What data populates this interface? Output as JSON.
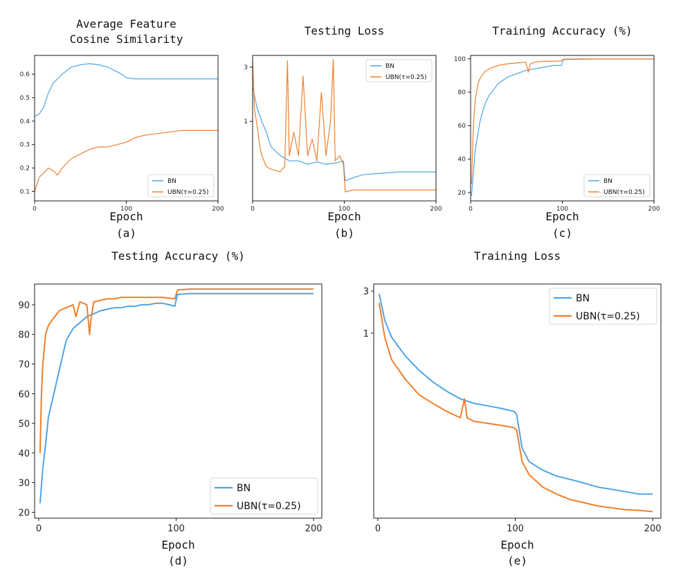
{
  "colors": {
    "bn": "#4ea4e3",
    "ubn": "#f07f2a"
  },
  "chart_data": [
    {
      "panel": "(a)",
      "type": "line",
      "title": "Average Feature\nCosine Similarity",
      "xlabel": "Epoch",
      "xlim": [
        0,
        200
      ],
      "ylim": [
        0.06,
        0.68
      ],
      "xticks": [
        0,
        100,
        200
      ],
      "yticks": [
        0.1,
        0.2,
        0.3,
        0.4,
        0.5,
        0.6
      ],
      "ytick_labels": [
        "0.1",
        "0.2",
        "0.3",
        "0.4",
        "0.5",
        "0.6"
      ],
      "legend": [
        "BN",
        "UBN(τ=0.25)"
      ],
      "legend_loc": "lower-right",
      "series": [
        {
          "name": "BN",
          "x": [
            0,
            5,
            10,
            15,
            20,
            30,
            40,
            50,
            60,
            70,
            80,
            90,
            95,
            100,
            110,
            120,
            140,
            160,
            180,
            200
          ],
          "y": [
            0.42,
            0.43,
            0.46,
            0.52,
            0.56,
            0.6,
            0.63,
            0.64,
            0.645,
            0.64,
            0.63,
            0.61,
            0.6,
            0.585,
            0.58,
            0.58,
            0.58,
            0.58,
            0.58,
            0.58
          ]
        },
        {
          "name": "UBN(τ=0.25)",
          "x": [
            0,
            5,
            10,
            15,
            20,
            25,
            30,
            40,
            50,
            60,
            70,
            80,
            90,
            100,
            110,
            120,
            140,
            160,
            180,
            200
          ],
          "y": [
            0.1,
            0.16,
            0.18,
            0.2,
            0.19,
            0.17,
            0.2,
            0.24,
            0.26,
            0.28,
            0.29,
            0.29,
            0.3,
            0.31,
            0.33,
            0.34,
            0.35,
            0.36,
            0.36,
            0.36
          ]
        }
      ]
    },
    {
      "panel": "(b)",
      "type": "line",
      "title": "Testing Loss",
      "xlabel": "Epoch",
      "xlim": [
        0,
        200
      ],
      "ylim": [
        0.2,
        3.8
      ],
      "yscale": "log",
      "xticks": [
        0,
        100,
        200
      ],
      "yticks": [
        1,
        3
      ],
      "ytick_labels": [
        "1",
        "3"
      ],
      "legend": [
        "BN",
        "UBN(τ=0.25)"
      ],
      "legend_loc": "top-right",
      "series": [
        {
          "name": "BN",
          "x": [
            0,
            5,
            10,
            15,
            20,
            30,
            40,
            50,
            60,
            70,
            80,
            90,
            99,
            101,
            110,
            120,
            140,
            160,
            180,
            200
          ],
          "y": [
            2.0,
            1.3,
            1.0,
            0.8,
            0.6,
            0.5,
            0.45,
            0.45,
            0.42,
            0.44,
            0.42,
            0.43,
            0.45,
            0.3,
            0.32,
            0.34,
            0.35,
            0.36,
            0.36,
            0.36
          ]
        },
        {
          "name": "UBN(τ=0.25)",
          "x": [
            0,
            2,
            5,
            8,
            10,
            15,
            20,
            30,
            35,
            38,
            40,
            45,
            50,
            55,
            60,
            65,
            70,
            75,
            80,
            85,
            88,
            90,
            95,
            99,
            101,
            110,
            120,
            140,
            160,
            180,
            200
          ],
          "y": [
            3.4,
            1.3,
            0.9,
            0.6,
            0.5,
            0.4,
            0.38,
            0.36,
            0.4,
            3.4,
            0.5,
            0.8,
            0.5,
            2.5,
            0.5,
            0.7,
            0.45,
            1.8,
            0.5,
            1.0,
            3.5,
            0.45,
            0.5,
            0.42,
            0.24,
            0.25,
            0.25,
            0.25,
            0.25,
            0.25,
            0.25
          ]
        }
      ]
    },
    {
      "panel": "(c)",
      "type": "line",
      "title": "Training Accuracy (%)",
      "xlabel": "Epoch",
      "xlim": [
        0,
        200
      ],
      "ylim": [
        15,
        102
      ],
      "xticks": [
        0,
        100,
        200
      ],
      "yticks": [
        20,
        40,
        60,
        80,
        100
      ],
      "ytick_labels": [
        "20",
        "40",
        "60",
        "80",
        "100"
      ],
      "legend": [
        "BN",
        "UBN(τ=0.25)"
      ],
      "legend_loc": "lower-right",
      "series": [
        {
          "name": "BN",
          "x": [
            1,
            5,
            10,
            15,
            20,
            30,
            40,
            50,
            60,
            70,
            80,
            90,
            99,
            101,
            110,
            120,
            140,
            160,
            180,
            200
          ],
          "y": [
            18,
            45,
            62,
            72,
            78,
            85,
            89,
            91,
            93,
            94,
            95,
            96,
            96,
            99.5,
            99.6,
            99.7,
            99.8,
            99.8,
            99.8,
            99.8
          ]
        },
        {
          "name": "UBN(τ=0.25)",
          "x": [
            1,
            3,
            5,
            8,
            10,
            15,
            20,
            30,
            40,
            50,
            60,
            63,
            65,
            70,
            80,
            90,
            99,
            101,
            110,
            120,
            140,
            160,
            180,
            200
          ],
          "y": [
            25,
            60,
            75,
            85,
            88,
            92,
            94,
            96,
            97,
            97.5,
            98,
            92,
            97,
            98,
            98.5,
            98.5,
            98.7,
            99.8,
            99.9,
            99.9,
            99.9,
            99.9,
            99.9,
            99.9
          ]
        }
      ]
    },
    {
      "panel": "(d)",
      "type": "line",
      "title": "Testing Accuracy (%)",
      "xlabel": "Epoch",
      "xlim": [
        -3,
        206
      ],
      "ylim": [
        18,
        97
      ],
      "xticks": [
        0,
        100,
        200
      ],
      "yticks": [
        20,
        30,
        40,
        50,
        60,
        70,
        80,
        90
      ],
      "ytick_labels": [
        "20",
        "30",
        "40",
        "50",
        "60",
        "70",
        "80",
        "90"
      ],
      "legend": [
        "BN",
        "UBN(τ=0.25)"
      ],
      "legend_loc": "lower-right",
      "series": [
        {
          "name": "BN",
          "x": [
            1,
            3,
            5,
            7,
            10,
            12,
            15,
            18,
            20,
            25,
            30,
            35,
            40,
            45,
            50,
            55,
            60,
            65,
            70,
            75,
            80,
            85,
            90,
            95,
            99,
            101,
            110,
            120,
            140,
            160,
            180,
            200
          ],
          "y": [
            23,
            35,
            43,
            52,
            58,
            62,
            68,
            74,
            78,
            82,
            84,
            86,
            87,
            88,
            88.5,
            89,
            89,
            89.5,
            89.5,
            90,
            90,
            90.5,
            90.5,
            90,
            89.5,
            93.5,
            93.8,
            93.8,
            93.8,
            93.8,
            93.8,
            93.8
          ]
        },
        {
          "name": "UBN(τ=0.25)",
          "x": [
            1,
            2,
            3,
            5,
            7,
            10,
            15,
            20,
            25,
            27,
            30,
            35,
            37,
            38,
            40,
            45,
            50,
            55,
            60,
            70,
            80,
            90,
            99,
            101,
            110,
            120,
            140,
            160,
            180,
            200
          ],
          "y": [
            40,
            60,
            70,
            80,
            83,
            85,
            88,
            89,
            90,
            86,
            91,
            90,
            80,
            85,
            91,
            91.5,
            92,
            92,
            92.5,
            92.5,
            92.5,
            92.5,
            92,
            95,
            95.3,
            95.3,
            95.3,
            95.3,
            95.3,
            95.3
          ]
        }
      ]
    },
    {
      "panel": "(e)",
      "type": "line",
      "title": "Training Loss",
      "xlabel": "Epoch",
      "xlim": [
        -3,
        206
      ],
      "ylim": [
        0.008,
        3.6
      ],
      "yscale": "log",
      "xticks": [
        0,
        100,
        200
      ],
      "yticks": [
        1,
        3
      ],
      "ytick_labels": [
        "1",
        "3"
      ],
      "legend": [
        "BN",
        "UBN(τ=0.25)"
      ],
      "legend_loc": "top-right",
      "series": [
        {
          "name": "BN",
          "x": [
            1,
            5,
            10,
            20,
            30,
            40,
            50,
            60,
            70,
            80,
            90,
            99,
            101,
            105,
            110,
            120,
            130,
            140,
            150,
            160,
            170,
            180,
            190,
            200
          ],
          "y": [
            2.8,
            1.4,
            0.9,
            0.55,
            0.38,
            0.28,
            0.22,
            0.18,
            0.16,
            0.15,
            0.14,
            0.13,
            0.12,
            0.05,
            0.035,
            0.028,
            0.024,
            0.022,
            0.02,
            0.018,
            0.017,
            0.016,
            0.015,
            0.015
          ]
        },
        {
          "name": "UBN(τ=0.25)",
          "x": [
            1,
            5,
            10,
            20,
            30,
            40,
            50,
            60,
            63,
            65,
            70,
            80,
            90,
            99,
            101,
            105,
            110,
            120,
            130,
            140,
            150,
            160,
            170,
            180,
            190,
            200
          ],
          "y": [
            2.2,
            0.9,
            0.5,
            0.3,
            0.2,
            0.16,
            0.13,
            0.11,
            0.18,
            0.11,
            0.1,
            0.095,
            0.09,
            0.085,
            0.08,
            0.035,
            0.025,
            0.018,
            0.015,
            0.013,
            0.012,
            0.011,
            0.0105,
            0.01,
            0.0098,
            0.0095
          ]
        }
      ]
    }
  ]
}
